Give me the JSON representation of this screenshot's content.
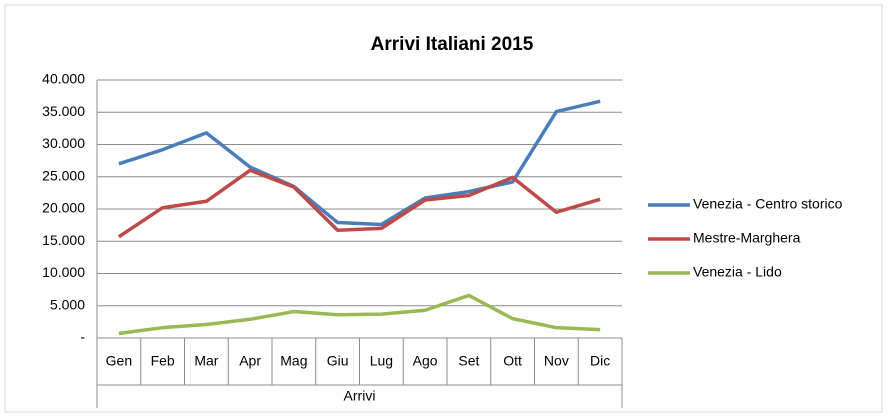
{
  "chart_data": {
    "type": "line",
    "title": "Arrivi Italiani 2015",
    "x_label": "Arrivi",
    "categories": [
      "Gen",
      "Feb",
      "Mar",
      "Apr",
      "Mag",
      "Giu",
      "Lug",
      "Ago",
      "Set",
      "Ott",
      "Nov",
      "Dic"
    ],
    "series": [
      {
        "name": "Venezia - Centro storico",
        "color": "#4a7ebb",
        "values": [
          27000,
          29200,
          31800,
          26500,
          23500,
          17900,
          17600,
          21700,
          22700,
          24200,
          35100,
          36700
        ]
      },
      {
        "name": "Mestre-Marghera",
        "color": "#be4b48",
        "values": [
          15700,
          20200,
          21200,
          26000,
          23400,
          16700,
          17000,
          21400,
          22100,
          24900,
          19500,
          21500
        ]
      },
      {
        "name": "Venezia - Lido",
        "color": "#98b954",
        "values": [
          700,
          1600,
          2100,
          2900,
          4100,
          3600,
          3700,
          4300,
          6600,
          3000,
          1600,
          1300
        ]
      }
    ],
    "ylim": [
      0,
      40000
    ],
    "yticks": [
      {
        "value": 0,
        "label": "-"
      },
      {
        "value": 5000,
        "label": "5.000"
      },
      {
        "value": 10000,
        "label": "10.000"
      },
      {
        "value": 15000,
        "label": "15.000"
      },
      {
        "value": 20000,
        "label": "20.000"
      },
      {
        "value": 25000,
        "label": "25.000"
      },
      {
        "value": 30000,
        "label": "30.000"
      },
      {
        "value": 35000,
        "label": "35.000"
      },
      {
        "value": 40000,
        "label": "40.000"
      }
    ],
    "grid": true,
    "legend": "right"
  }
}
